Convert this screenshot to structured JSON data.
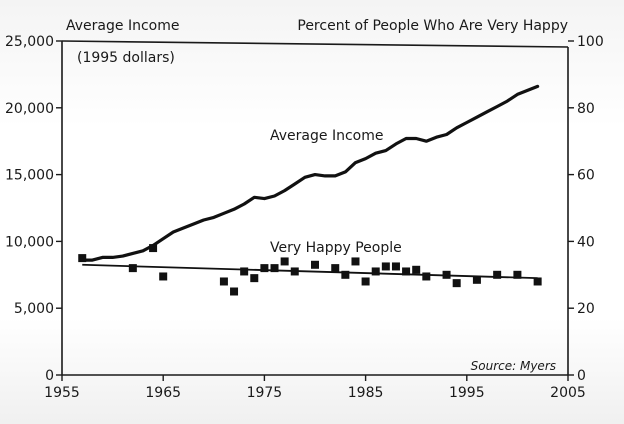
{
  "chart_data": {
    "type": "line",
    "title": "",
    "left_axis": {
      "label": "Average Income",
      "sublabel": "(1995 dollars)",
      "ylim": [
        0,
        25000
      ],
      "ticks": [
        0,
        5000,
        10000,
        15000,
        20000,
        25000
      ],
      "tick_labels": [
        "0",
        "5,000",
        "10,000",
        "15,000",
        "20,000",
        "25,000"
      ]
    },
    "right_axis": {
      "label": "Percent of People Who Are Very Happy",
      "ylim": [
        0,
        100
      ],
      "ticks": [
        0,
        20,
        40,
        60,
        80,
        100
      ],
      "tick_labels": [
        "0",
        "20",
        "40",
        "60",
        "80",
        "100"
      ]
    },
    "x_axis": {
      "xlim": [
        1955,
        2005
      ],
      "ticks": [
        1955,
        1965,
        1975,
        1985,
        1995,
        2005
      ],
      "tick_labels": [
        "1955",
        "1965",
        "1975",
        "1985",
        "1995",
        "2005"
      ]
    },
    "grid": false,
    "series": [
      {
        "name": "Average Income",
        "kind": "line",
        "axis": "left",
        "x": [
          1957,
          1958,
          1959,
          1960,
          1961,
          1962,
          1963,
          1964,
          1965,
          1966,
          1967,
          1968,
          1969,
          1970,
          1971,
          1972,
          1973,
          1974,
          1975,
          1976,
          1977,
          1978,
          1979,
          1980,
          1981,
          1982,
          1983,
          1984,
          1985,
          1986,
          1987,
          1988,
          1989,
          1990,
          1991,
          1992,
          1993,
          1994,
          1995,
          1996,
          1997,
          1998,
          1999,
          2000,
          2001,
          2002
        ],
        "y": [
          8600,
          8600,
          8800,
          8800,
          8900,
          9100,
          9300,
          9700,
          10200,
          10700,
          11000,
          11300,
          11600,
          11800,
          12100,
          12400,
          12800,
          13300,
          13200,
          13400,
          13800,
          14300,
          14800,
          15000,
          14900,
          14900,
          15200,
          15900,
          16200,
          16600,
          16800,
          17300,
          17700,
          17700,
          17500,
          17800,
          18000,
          18500,
          18900,
          19300,
          19700,
          20100,
          20500,
          21000,
          21300,
          21600
        ]
      },
      {
        "name": "Very Happy People",
        "kind": "scatter",
        "axis": "right",
        "x": [
          1957,
          1962,
          1964,
          1965,
          1971,
          1972,
          1973,
          1974,
          1975,
          1976,
          1977,
          1978,
          1980,
          1982,
          1983,
          1984,
          1985,
          1986,
          1987,
          1988,
          1989,
          1990,
          1991,
          1993,
          1994,
          1996,
          1998,
          2000,
          2002
        ],
        "y": [
          35,
          32,
          38,
          29.5,
          28,
          25,
          31,
          29,
          32,
          32,
          34,
          31,
          33,
          32,
          30,
          34,
          28,
          31,
          32.5,
          32.5,
          31,
          31.5,
          29.5,
          30,
          27.5,
          28.5,
          30,
          30,
          28
        ]
      },
      {
        "name": "Very Happy People trend",
        "kind": "trendline",
        "axis": "right",
        "x": [
          1957,
          2002
        ],
        "y": [
          33,
          29
        ]
      }
    ],
    "annotations": [
      {
        "text": "Average Income",
        "x": 1981,
        "y_left": 17300
      },
      {
        "text": "Very Happy People",
        "x": 1981,
        "y_left": 9700
      }
    ],
    "source": "Source: Myers"
  }
}
